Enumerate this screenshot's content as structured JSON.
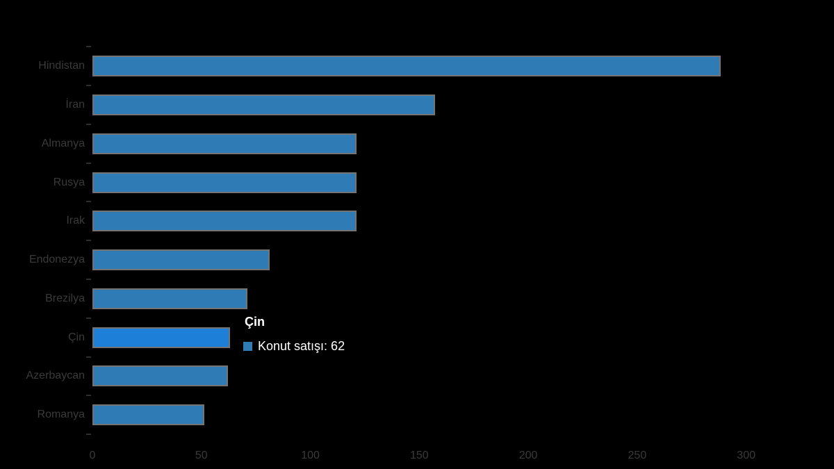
{
  "chart_data": {
    "type": "bar",
    "orientation": "horizontal",
    "title": "",
    "categories": [
      "Hindistan",
      "İran",
      "Almanya",
      "Rusya",
      "Irak",
      "Endonezya",
      "Brezilya",
      "Çin",
      "Azerbaycan",
      "Romanya"
    ],
    "series": [
      {
        "name": "Konut satışı",
        "values": [
          287,
          156,
          120,
          120,
          120,
          80,
          70,
          62,
          61,
          50
        ]
      }
    ],
    "xlabel": "",
    "ylabel": "",
    "xlim": [
      0,
      300
    ],
    "xticks": [
      "0",
      "50",
      "100",
      "150",
      "200",
      "250",
      "300"
    ],
    "xtick_values": [
      0,
      50,
      100,
      150,
      200,
      250,
      300
    ],
    "grid": false,
    "legend_position": "none",
    "hovered_index": 7,
    "colors": {
      "bar": "#2f7bb6",
      "bar_hover": "#1d7fd8",
      "bar_border": "#747474",
      "axis_text": "#3a3a3a",
      "tooltip_text": "#ffffff",
      "background": "#000000"
    }
  },
  "tooltip": {
    "title": "Çin",
    "series_label": "Konut satışı",
    "value": "62",
    "body": "Konut satışı: 62",
    "marker_color": "#2f7bb6"
  }
}
